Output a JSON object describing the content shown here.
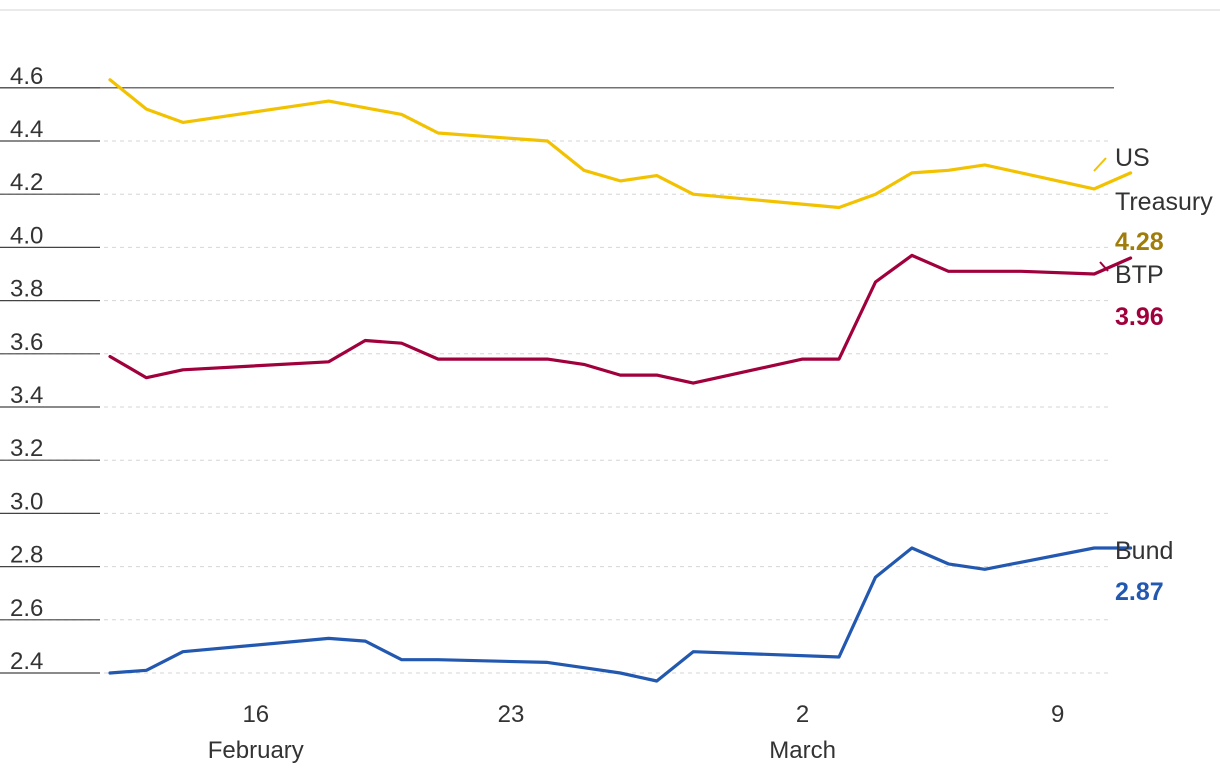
{
  "chart_data": {
    "type": "line",
    "y_ticks": [
      "2.4",
      "2.6",
      "2.8",
      "3.0",
      "3.2",
      "3.4",
      "3.6",
      "3.8",
      "4.0",
      "4.2",
      "4.4",
      "4.6"
    ],
    "ylim": [
      2.4,
      4.6
    ],
    "x_ticks": [
      {
        "day": "16",
        "month": "February",
        "x": "2024-02-16"
      },
      {
        "day": "23",
        "month": "",
        "x": "2024-02-23"
      },
      {
        "day": "2",
        "month": "March",
        "x": "2024-03-02"
      },
      {
        "day": "9",
        "month": "",
        "x": "2024-03-09"
      }
    ],
    "xlim": [
      "2024-02-12",
      "2024-03-10"
    ],
    "grid": true,
    "series": [
      {
        "name": "US Treasury",
        "label_lines": [
          "US",
          "Treasury"
        ],
        "value_label": "4.28",
        "color": "#f2c200",
        "label_color": "#a07d0b",
        "points": [
          [
            "2024-02-12",
            4.63
          ],
          [
            "2024-02-13",
            4.52
          ],
          [
            "2024-02-14",
            4.47
          ],
          [
            "2024-02-18",
            4.55
          ],
          [
            "2024-02-20",
            4.5
          ],
          [
            "2024-02-21",
            4.43
          ],
          [
            "2024-02-24",
            4.4
          ],
          [
            "2024-02-25",
            4.29
          ],
          [
            "2024-02-26",
            4.25
          ],
          [
            "2024-02-27",
            4.27
          ],
          [
            "2024-02-28",
            4.2
          ],
          [
            "2024-03-03",
            4.15
          ],
          [
            "2024-03-04",
            4.2
          ],
          [
            "2024-03-05",
            4.28
          ],
          [
            "2024-03-06",
            4.29
          ],
          [
            "2024-03-07",
            4.31
          ],
          [
            "2024-03-10",
            4.22
          ],
          [
            "2024-03-11",
            4.28
          ]
        ]
      },
      {
        "name": "BTP",
        "label_lines": [
          "BTP"
        ],
        "value_label": "3.96",
        "color": "#a0003c",
        "label_color": "#a0003c",
        "points": [
          [
            "2024-02-12",
            3.59
          ],
          [
            "2024-02-13",
            3.51
          ],
          [
            "2024-02-14",
            3.54
          ],
          [
            "2024-02-18",
            3.57
          ],
          [
            "2024-02-19",
            3.65
          ],
          [
            "2024-02-20",
            3.64
          ],
          [
            "2024-02-21",
            3.58
          ],
          [
            "2024-02-24",
            3.58
          ],
          [
            "2024-02-25",
            3.56
          ],
          [
            "2024-02-26",
            3.52
          ],
          [
            "2024-02-27",
            3.52
          ],
          [
            "2024-02-28",
            3.49
          ],
          [
            "2024-03-02",
            3.58
          ],
          [
            "2024-03-03",
            3.58
          ],
          [
            "2024-03-04",
            3.87
          ],
          [
            "2024-03-05",
            3.97
          ],
          [
            "2024-03-06",
            3.91
          ],
          [
            "2024-03-08",
            3.91
          ],
          [
            "2024-03-10",
            3.9
          ],
          [
            "2024-03-11",
            3.96
          ]
        ]
      },
      {
        "name": "Bund",
        "label_lines": [
          "Bund"
        ],
        "value_label": "2.87",
        "color": "#2358b0",
        "label_color": "#2358b0",
        "points": [
          [
            "2024-02-12",
            2.4
          ],
          [
            "2024-02-13",
            2.41
          ],
          [
            "2024-02-14",
            2.48
          ],
          [
            "2024-02-18",
            2.53
          ],
          [
            "2024-02-19",
            2.52
          ],
          [
            "2024-02-20",
            2.45
          ],
          [
            "2024-02-21",
            2.45
          ],
          [
            "2024-02-24",
            2.44
          ],
          [
            "2024-02-25",
            2.42
          ],
          [
            "2024-02-26",
            2.4
          ],
          [
            "2024-02-27",
            2.37
          ],
          [
            "2024-02-28",
            2.48
          ],
          [
            "2024-03-03",
            2.46
          ],
          [
            "2024-03-04",
            2.76
          ],
          [
            "2024-03-05",
            2.87
          ],
          [
            "2024-03-06",
            2.81
          ],
          [
            "2024-03-07",
            2.79
          ],
          [
            "2024-03-10",
            2.87
          ],
          [
            "2024-03-11",
            2.87
          ]
        ]
      }
    ]
  }
}
